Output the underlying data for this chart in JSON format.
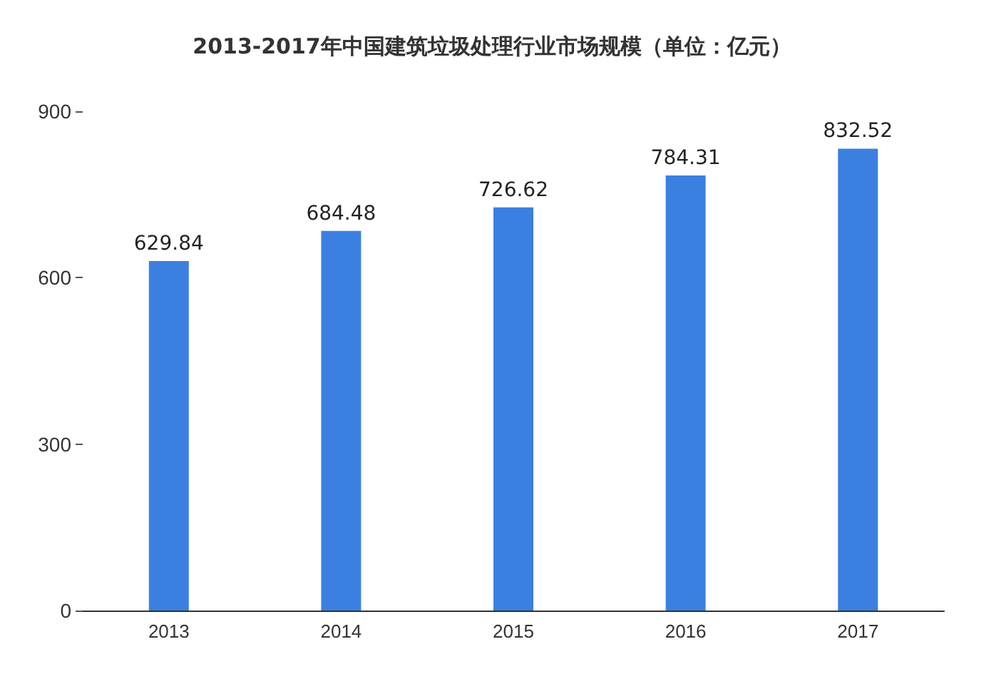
{
  "chart_data": {
    "type": "bar",
    "title": "2013-2017年中国建筑垃圾处理行业市场规模（单位：亿元）",
    "categories": [
      "2013",
      "2014",
      "2015",
      "2016",
      "2017"
    ],
    "values": [
      629.84,
      684.48,
      726.62,
      784.31,
      832.52
    ],
    "color": "#3b80e0",
    "ylim": [
      0,
      900
    ],
    "yticks": [
      0,
      300,
      600,
      900
    ],
    "data_labels": true,
    "grid": false
  }
}
